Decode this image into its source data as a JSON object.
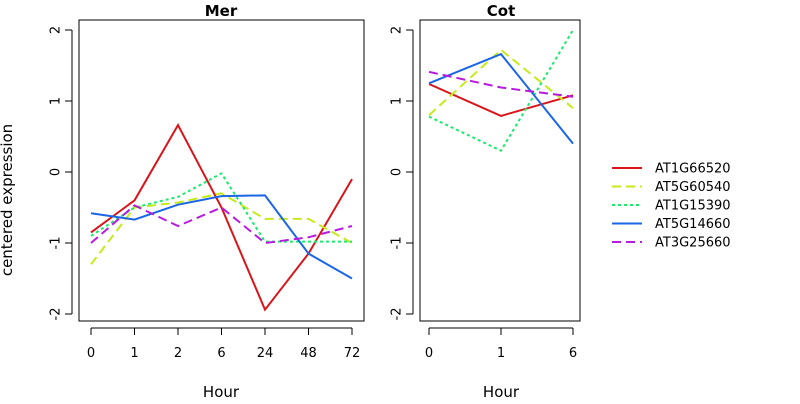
{
  "chart_data": {
    "type": "line",
    "ylabel": "centered expression",
    "legend": {
      "placement": "right",
      "entries": [
        {
          "name": "AT1G66520",
          "color": "#d9141a",
          "dash": "solid"
        },
        {
          "name": "AT5G60540",
          "color": "#c5eb1a",
          "dash": "dashed"
        },
        {
          "name": "AT1G15390",
          "color": "#1aeb6b",
          "dash": "dotted"
        },
        {
          "name": "AT5G14660",
          "color": "#1a66e6",
          "dash": "solid"
        },
        {
          "name": "AT3G25660",
          "color": "#b81ae0",
          "dash": "dashed"
        }
      ]
    },
    "panels": [
      {
        "title": "Mer",
        "xlabel": "Hour",
        "categories": [
          "0",
          "1",
          "2",
          "6",
          "24",
          "48",
          "72"
        ],
        "ylim": [
          -2,
          2
        ],
        "yticks": [
          "-2",
          "-1",
          "0",
          "1",
          "2"
        ],
        "series": [
          {
            "name": "AT1G66520",
            "values": [
              -0.85,
              -0.4,
              0.66,
              -0.5,
              -1.94,
              -1.15,
              -0.1
            ]
          },
          {
            "name": "AT5G60540",
            "values": [
              -1.3,
              -0.5,
              -0.43,
              -0.3,
              -0.66,
              -0.66,
              -1.0
            ]
          },
          {
            "name": "AT1G15390",
            "values": [
              -0.9,
              -0.5,
              -0.35,
              -0.02,
              -0.98,
              -0.98,
              -0.98
            ]
          },
          {
            "name": "AT5G14660",
            "values": [
              -0.58,
              -0.67,
              -0.46,
              -0.34,
              -0.33,
              -1.15,
              -1.5
            ]
          },
          {
            "name": "AT3G25660",
            "values": [
              -1.0,
              -0.47,
              -0.76,
              -0.5,
              -1.0,
              -0.92,
              -0.76
            ]
          }
        ]
      },
      {
        "title": "Cot",
        "xlabel": "Hour",
        "categories": [
          "0",
          "1",
          "6"
        ],
        "ylim": [
          -2,
          2
        ],
        "yticks": [
          "-2",
          "-1",
          "0",
          "1",
          "2"
        ],
        "series": [
          {
            "name": "AT1G66520",
            "values": [
              1.24,
              0.79,
              1.08
            ]
          },
          {
            "name": "AT5G60540",
            "values": [
              0.8,
              1.72,
              0.9
            ]
          },
          {
            "name": "AT1G15390",
            "values": [
              0.78,
              0.3,
              2.0
            ]
          },
          {
            "name": "AT5G14660",
            "values": [
              1.25,
              1.66,
              0.4
            ]
          },
          {
            "name": "AT3G25660",
            "values": [
              1.41,
              1.19,
              1.06
            ]
          }
        ]
      }
    ]
  }
}
